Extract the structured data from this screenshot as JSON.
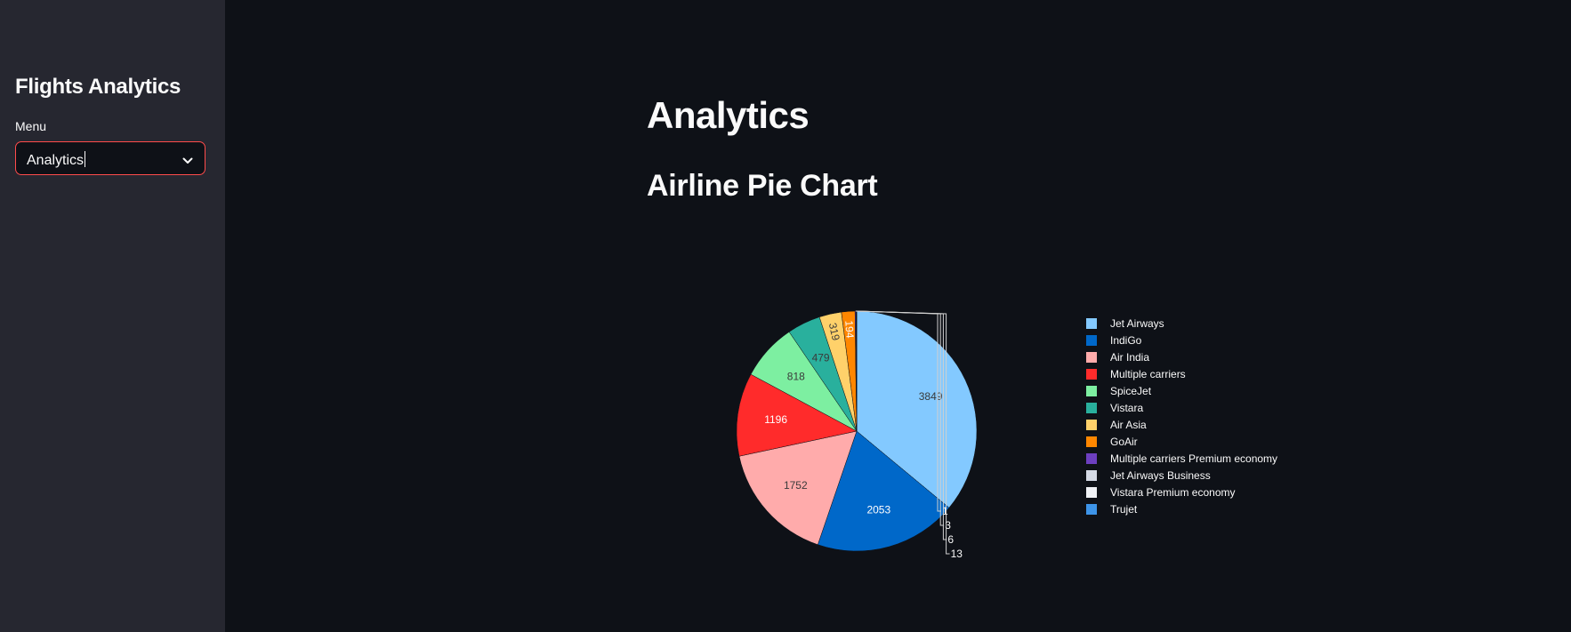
{
  "sidebar": {
    "title": "Flights Analytics",
    "menu_label": "Menu",
    "menu_selected": "Analytics",
    "icon": "chevron-down-icon"
  },
  "main": {
    "title": "Analytics",
    "subtitle": "Airline Pie Chart"
  },
  "colors": {
    "background": "#0e1117",
    "sidebar": "#262730",
    "accent": "#ff4b4b",
    "text": "#fafafa"
  },
  "chart_data": {
    "type": "pie",
    "title": "",
    "legend_position": "right",
    "slices": [
      {
        "label": "Jet Airways",
        "value": 3849,
        "color": "#83c9ff",
        "text_color": "#3a3a3a"
      },
      {
        "label": "IndiGo",
        "value": 2053,
        "color": "#0068c9",
        "text_color": "#ffffff"
      },
      {
        "label": "Air India",
        "value": 1752,
        "color": "#ffabab",
        "text_color": "#3a3a3a"
      },
      {
        "label": "Multiple carriers",
        "value": 1196,
        "color": "#ff2b2b",
        "text_color": "#ffffff"
      },
      {
        "label": "SpiceJet",
        "value": 818,
        "color": "#7defa1",
        "text_color": "#3a3a3a"
      },
      {
        "label": "Vistara",
        "value": 479,
        "color": "#29b09d",
        "text_color": "#3a3a3a"
      },
      {
        "label": "Air Asia",
        "value": 319,
        "color": "#ffd16a",
        "text_color": "#3a3a3a"
      },
      {
        "label": "GoAir",
        "value": 194,
        "color": "#ff8700",
        "text_color": "#fafafa"
      },
      {
        "label": "Multiple carriers Premium economy",
        "value": 13,
        "color": "#6d3fc0",
        "text_color": "#fafafa"
      },
      {
        "label": "Jet Airways Business",
        "value": 6,
        "color": "#d5dae5",
        "text_color": "#fafafa"
      },
      {
        "label": "Vistara Premium economy",
        "value": 3,
        "color": "#f0f2f6",
        "text_color": "#fafafa"
      },
      {
        "label": "Trujet",
        "value": 1,
        "color": "#3d94e8",
        "text_color": "#fafafa"
      }
    ]
  }
}
